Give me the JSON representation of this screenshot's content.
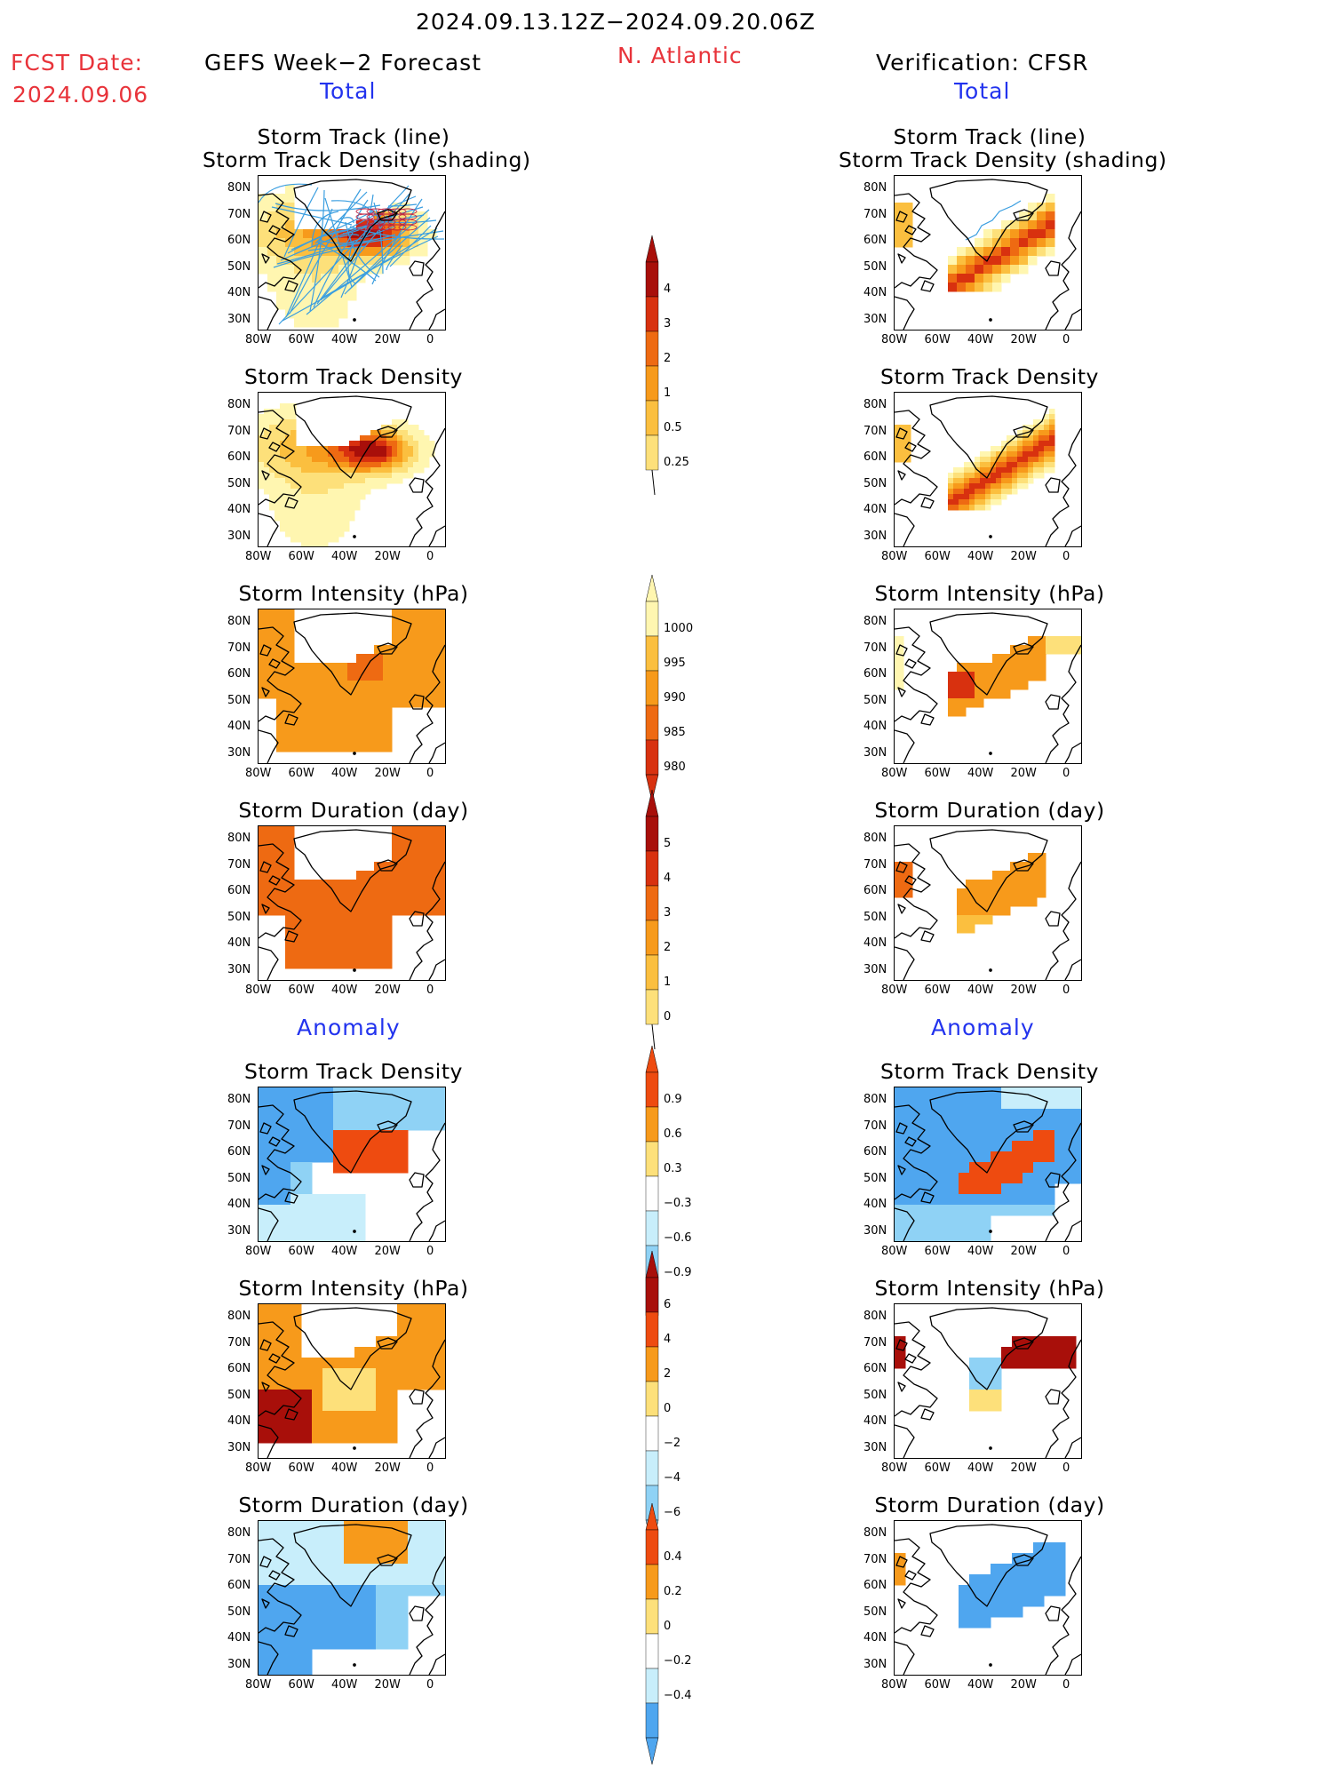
{
  "header": {
    "period": "2024.09.13.12Z−2024.09.20.06Z",
    "fcst_label": "FCST Date:",
    "fcst_date": "2024.09.06",
    "left_title": "GEFS Week−2 Forecast",
    "region": "N. Atlantic",
    "right_title": "Verification: CFSR",
    "total_label": "Total",
    "anomaly_label": "Anomaly"
  },
  "panel_titles": {
    "track_line": "Storm Track (line)",
    "track_density_shading": "Storm Track Density (shading)",
    "track_density": "Storm Track Density",
    "intensity": "Storm Intensity (hPa)",
    "duration": "Storm Duration (day)"
  },
  "axes": {
    "lat_labels": [
      "80N",
      "70N",
      "60N",
      "50N",
      "40N",
      "30N"
    ],
    "lon_labels": [
      "80W",
      "60W",
      "40W",
      "20W",
      "0"
    ]
  },
  "colorbars": {
    "density": [
      "4",
      "3",
      "2",
      "1",
      "0.5",
      "0.25"
    ],
    "intensity": [
      "1000",
      "995",
      "990",
      "985",
      "980"
    ],
    "duration": [
      "5",
      "4",
      "3",
      "2",
      "1",
      "0"
    ],
    "density_anom": [
      "0.9",
      "0.6",
      "0.3",
      "−0.3",
      "−0.6",
      "−0.9"
    ],
    "intensity_anom": [
      "6",
      "4",
      "2",
      "0",
      "−2",
      "−4",
      "−6"
    ],
    "duration_anom": [
      "0.4",
      "0.2",
      "0",
      "−0.2",
      "−0.4"
    ]
  },
  "colors": {
    "warm": [
      "#fff6b0",
      "#fde07a",
      "#fbbf3f",
      "#f79a1b",
      "#ee6a12",
      "#d8310f",
      "#a80f0a"
    ],
    "cool": [
      "#c8eefb",
      "#8fd2f5",
      "#4fa6ef",
      "#1f6fdc"
    ],
    "anom_warm": [
      "#fde07a",
      "#f79a1b",
      "#ee4b10"
    ],
    "track_line": "#3a9ee0"
  }
}
